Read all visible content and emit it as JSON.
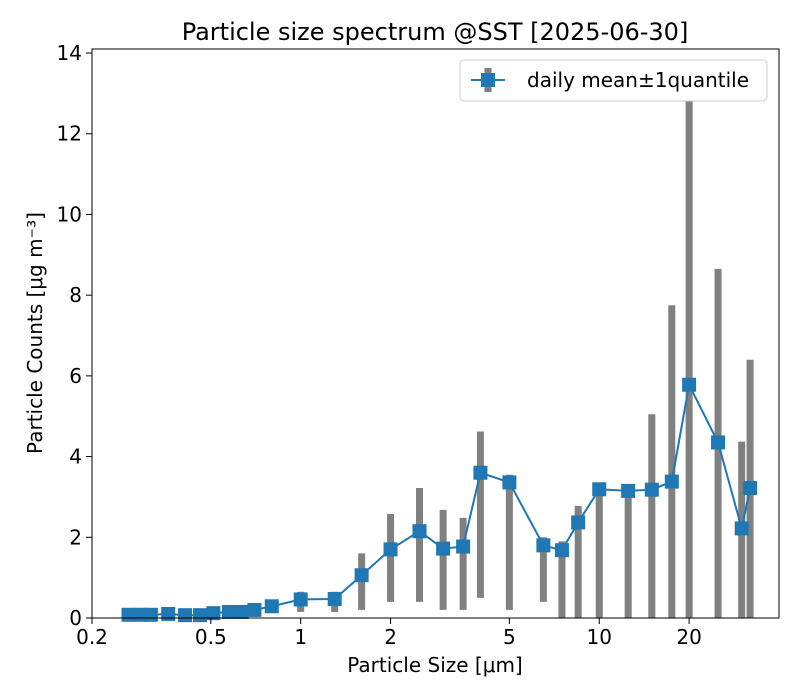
{
  "chart_data": {
    "type": "scatter",
    "title": "Particle size spectrum @SST [2025-06-30]",
    "xlabel": "Particle Size [μm]",
    "ylabel": "Particle Counts [μg m⁻³]",
    "x_scale": "log",
    "xlim": [
      0.2,
      40
    ],
    "ylim": [
      0,
      14.1
    ],
    "x_ticks": [
      0.2,
      0.5,
      1,
      2,
      5,
      10,
      20
    ],
    "x_tick_labels": [
      "0.2",
      "0.5",
      "1",
      "2",
      "5",
      "10",
      "20"
    ],
    "y_ticks": [
      0,
      2,
      4,
      6,
      8,
      10,
      12,
      14
    ],
    "y_tick_labels": [
      "0",
      "2",
      "4",
      "6",
      "8",
      "10",
      "12",
      "14"
    ],
    "grid": false,
    "legend_position": "top-right",
    "colors": {
      "series": "#1f77b4",
      "errorbar": "#808080"
    },
    "series": [
      {
        "name": "daily mean±1quantile",
        "x": [
          0.265,
          0.29,
          0.315,
          0.36,
          0.41,
          0.46,
          0.51,
          0.575,
          0.635,
          0.7,
          0.8,
          1.0,
          1.3,
          1.6,
          2.0,
          2.5,
          3.0,
          3.5,
          4.0,
          5.0,
          6.5,
          7.5,
          8.5,
          10.0,
          12.5,
          15.0,
          17.5,
          20.0,
          25.0,
          30.0,
          32.0
        ],
        "y": [
          0.08,
          0.08,
          0.08,
          0.1,
          0.07,
          0.07,
          0.12,
          0.15,
          0.15,
          0.2,
          0.29,
          0.46,
          0.47,
          1.06,
          1.7,
          2.15,
          1.72,
          1.77,
          3.6,
          3.36,
          1.8,
          1.68,
          2.37,
          3.19,
          3.15,
          3.18,
          3.38,
          5.78,
          4.35,
          2.22,
          3.22
        ],
        "y_low": [
          0.0,
          0.0,
          0.0,
          0.0,
          0.0,
          0.0,
          0.0,
          0.0,
          0.0,
          0.05,
          0.15,
          0.15,
          0.15,
          0.2,
          0.4,
          0.4,
          0.2,
          0.2,
          0.5,
          0.2,
          0.4,
          0.0,
          0.0,
          0.0,
          0.0,
          0.0,
          0.0,
          0.0,
          0.0,
          0.0,
          0.0
        ],
        "y_high": [
          0.15,
          0.15,
          0.15,
          0.2,
          0.15,
          0.15,
          0.2,
          0.25,
          0.25,
          0.3,
          0.45,
          0.65,
          0.65,
          1.6,
          2.58,
          3.22,
          2.68,
          2.48,
          4.62,
          3.55,
          2.0,
          1.9,
          2.78,
          3.3,
          3.25,
          5.05,
          7.75,
          13.3,
          8.65,
          4.37,
          6.4
        ]
      }
    ]
  }
}
